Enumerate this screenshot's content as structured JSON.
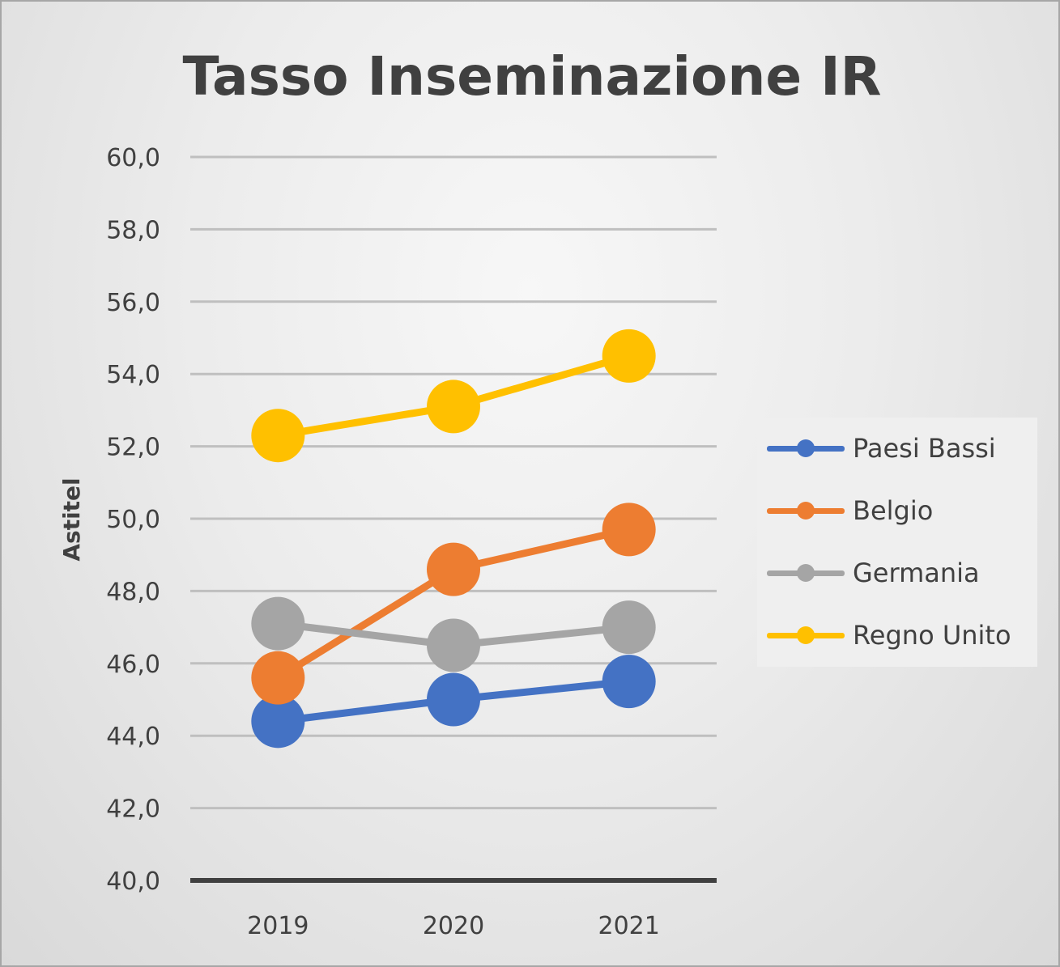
{
  "chart_data": {
    "type": "line",
    "title": "Tasso Inseminazione IR",
    "xlabel": "",
    "ylabel": "Astitel",
    "categories": [
      "2019",
      "2020",
      "2021"
    ],
    "ylim": [
      40,
      60
    ],
    "ytick_step": 2,
    "ytick_labels": [
      "40,0",
      "42,0",
      "44,0",
      "46,0",
      "48,0",
      "50,0",
      "52,0",
      "54,0",
      "56,0",
      "58,0",
      "60,0"
    ],
    "grid": true,
    "legend_position": "right",
    "series": [
      {
        "name": "Paesi Bassi",
        "color": "#4472c4",
        "values": [
          44.4,
          45.0,
          45.5
        ]
      },
      {
        "name": "Belgio",
        "color": "#ed7d31",
        "values": [
          45.6,
          48.6,
          49.7
        ]
      },
      {
        "name": "Germania",
        "color": "#a5a5a5",
        "values": [
          47.1,
          46.5,
          47.0
        ]
      },
      {
        "name": "Regno Unito",
        "color": "#ffc000",
        "values": [
          52.3,
          53.1,
          54.5
        ]
      }
    ]
  }
}
